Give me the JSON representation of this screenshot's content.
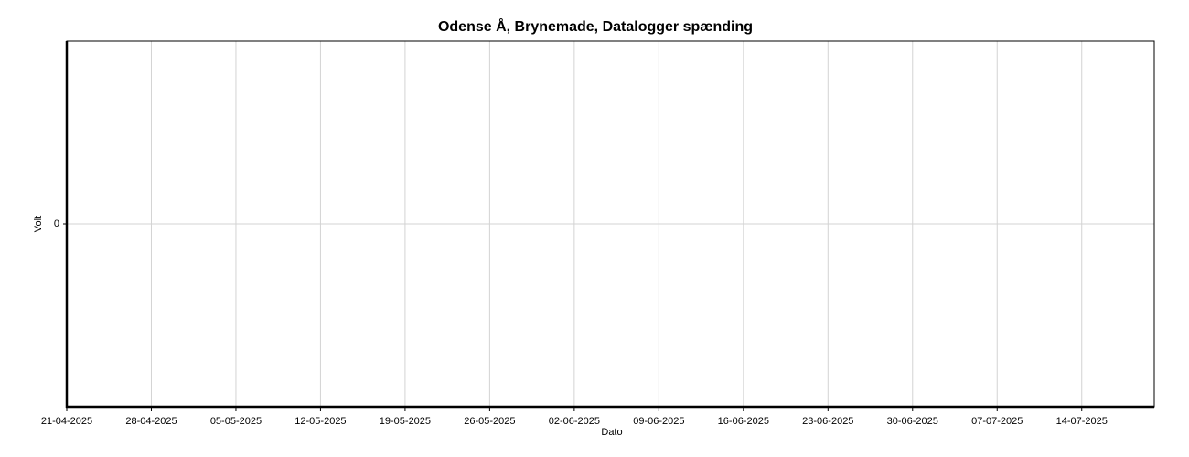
{
  "chart_data": {
    "type": "line",
    "title": "Odense Å, Brynemade, Datalogger spænding",
    "xlabel": "Dato",
    "ylabel": "Volt",
    "xlim": [
      "21-04-2025",
      "20-07-2025"
    ],
    "xticks": [
      "21-04-2025",
      "28-04-2025",
      "05-05-2025",
      "12-05-2025",
      "19-05-2025",
      "26-05-2025",
      "02-06-2025",
      "09-06-2025",
      "16-06-2025",
      "23-06-2025",
      "30-06-2025",
      "07-07-2025",
      "14-07-2025"
    ],
    "ylim": [
      -1,
      1
    ],
    "yticks": [
      0
    ],
    "grid": true,
    "series": []
  }
}
